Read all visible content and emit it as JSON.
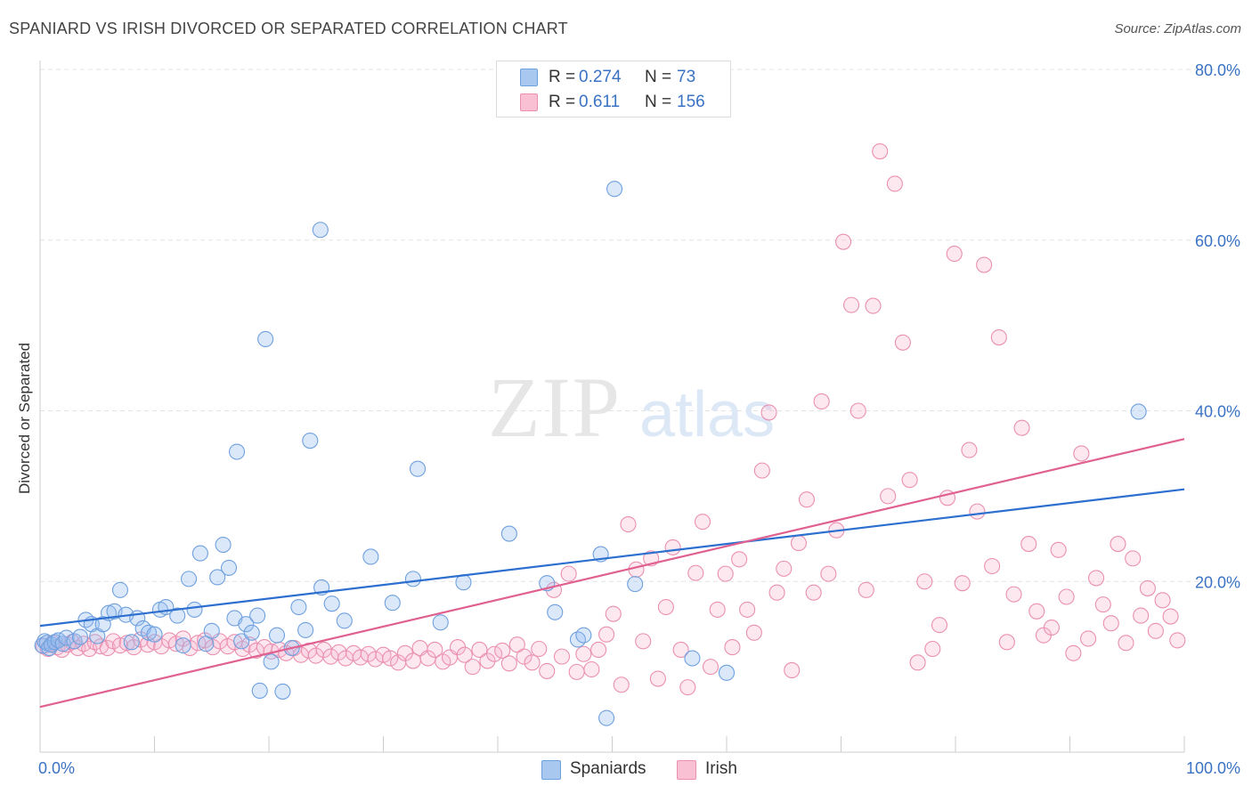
{
  "header": {
    "title": "SPANIARD VS IRISH DIVORCED OR SEPARATED CORRELATION CHART",
    "source": "Source: ZipAtlas.com"
  },
  "watermark": {
    "zip": "ZIP",
    "atlas": "atlas"
  },
  "legend_top": {
    "rows": [
      {
        "r_label": "R =",
        "r_value": "0.274",
        "n_label": "N =",
        "n_value": "73",
        "color": "#a9c8f0",
        "border": "#6fa0de"
      },
      {
        "r_label": "R =",
        "r_value": "0.611",
        "n_label": "N =",
        "n_value": "156",
        "color": "#f9bfd3",
        "border": "#ea8fb0"
      }
    ]
  },
  "legend_bottom": {
    "items": [
      {
        "label": "Spaniards",
        "color": "#a9c8f0",
        "border": "#6fa0de"
      },
      {
        "label": "Irish",
        "color": "#f9bfd3",
        "border": "#ea8fb0"
      }
    ]
  },
  "colors": {
    "spaniards_fill": "rgba(150,190,240,0.35)",
    "spaniards_stroke": "#6fa0de",
    "spaniards_line": "#2c6fcf",
    "irish_fill": "rgba(249,180,205,0.30)",
    "irish_stroke": "#ea8fb0",
    "irish_line": "#e0608f",
    "tick_label": "#3a72c4",
    "grid": "#e3e3e3"
  },
  "chart_data": {
    "type": "scatter",
    "title": "SPANIARD VS IRISH DIVORCED OR SEPARATED CORRELATION CHART",
    "xlabel": "",
    "ylabel": "Divorced or Separated",
    "xlim": [
      0,
      100
    ],
    "ylim": [
      0,
      80
    ],
    "x_tick_labels": [
      "0.0%",
      "100.0%"
    ],
    "y_ticks": [
      20,
      40,
      60,
      80
    ],
    "y_tick_labels": [
      "20.0%",
      "40.0%",
      "60.0%",
      "80.0%"
    ],
    "grid": true,
    "legend_position": "top-center",
    "series": [
      {
        "name": "Spaniards",
        "points": [
          [
            0.2,
            12.5
          ],
          [
            0.4,
            13.0
          ],
          [
            0.6,
            12.8
          ],
          [
            0.8,
            12.2
          ],
          [
            1.0,
            12.6
          ],
          [
            1.3,
            12.9
          ],
          [
            1.6,
            13.1
          ],
          [
            2.0,
            12.7
          ],
          [
            2.3,
            13.4
          ],
          [
            3.0,
            13.0
          ],
          [
            3.5,
            13.5
          ],
          [
            4.0,
            15.5
          ],
          [
            4.5,
            15.0
          ],
          [
            5.0,
            13.6
          ],
          [
            5.5,
            15.0
          ],
          [
            6.0,
            16.3
          ],
          [
            6.5,
            16.5
          ],
          [
            7.0,
            19.0
          ],
          [
            7.5,
            16.1
          ],
          [
            8.0,
            12.9
          ],
          [
            8.5,
            15.7
          ],
          [
            9.0,
            14.5
          ],
          [
            9.5,
            14.0
          ],
          [
            10.0,
            13.8
          ],
          [
            10.5,
            16.7
          ],
          [
            11.0,
            17.0
          ],
          [
            12.0,
            16.0
          ],
          [
            12.5,
            12.5
          ],
          [
            13.0,
            20.3
          ],
          [
            13.5,
            16.7
          ],
          [
            14.0,
            23.3
          ],
          [
            14.5,
            12.7
          ],
          [
            15.0,
            14.2
          ],
          [
            15.5,
            20.5
          ],
          [
            16.0,
            24.3
          ],
          [
            16.5,
            21.6
          ],
          [
            17.0,
            15.7
          ],
          [
            17.2,
            35.2
          ],
          [
            17.6,
            13.0
          ],
          [
            18.0,
            15.0
          ],
          [
            18.5,
            14.0
          ],
          [
            19.0,
            16.0
          ],
          [
            19.2,
            7.2
          ],
          [
            19.7,
            48.4
          ],
          [
            20.2,
            10.6
          ],
          [
            20.7,
            13.7
          ],
          [
            21.2,
            7.1
          ],
          [
            22.0,
            12.2
          ],
          [
            22.6,
            17.0
          ],
          [
            23.2,
            14.3
          ],
          [
            23.6,
            36.5
          ],
          [
            24.5,
            61.2
          ],
          [
            24.6,
            19.3
          ],
          [
            25.5,
            17.4
          ],
          [
            26.6,
            15.4
          ],
          [
            28.9,
            22.9
          ],
          [
            30.8,
            17.5
          ],
          [
            32.6,
            20.3
          ],
          [
            33.0,
            33.2
          ],
          [
            35.0,
            15.2
          ],
          [
            37.0,
            19.9
          ],
          [
            41.0,
            25.6
          ],
          [
            44.3,
            19.8
          ],
          [
            45.0,
            16.4
          ],
          [
            47.0,
            13.2
          ],
          [
            47.5,
            13.7
          ],
          [
            49.0,
            23.2
          ],
          [
            49.5,
            4.0
          ],
          [
            50.2,
            66.0
          ],
          [
            52.0,
            19.7
          ],
          [
            57.0,
            11.0
          ],
          [
            60.0,
            9.3
          ],
          [
            96.0,
            39.9
          ]
        ]
      },
      {
        "name": "Irish",
        "points": [
          [
            0.3,
            12.4
          ],
          [
            0.7,
            12.1
          ],
          [
            1.1,
            12.8
          ],
          [
            1.5,
            12.3
          ],
          [
            1.9,
            12.0
          ],
          [
            2.4,
            12.6
          ],
          [
            2.8,
            12.9
          ],
          [
            3.3,
            12.2
          ],
          [
            3.8,
            12.7
          ],
          [
            4.3,
            12.1
          ],
          [
            4.8,
            12.9
          ],
          [
            5.3,
            12.4
          ],
          [
            5.9,
            12.2
          ],
          [
            6.4,
            13.0
          ],
          [
            7.0,
            12.5
          ],
          [
            7.6,
            12.8
          ],
          [
            8.2,
            12.3
          ],
          [
            8.8,
            13.2
          ],
          [
            9.4,
            12.6
          ],
          [
            10.0,
            12.9
          ],
          [
            10.6,
            12.4
          ],
          [
            11.3,
            13.1
          ],
          [
            11.9,
            12.7
          ],
          [
            12.5,
            13.3
          ],
          [
            13.1,
            12.2
          ],
          [
            13.8,
            12.8
          ],
          [
            14.4,
            13.1
          ],
          [
            15.1,
            12.3
          ],
          [
            15.7,
            13.0
          ],
          [
            16.4,
            12.4
          ],
          [
            17.0,
            12.9
          ],
          [
            17.7,
            12.1
          ],
          [
            18.3,
            12.6
          ],
          [
            18.9,
            11.9
          ],
          [
            19.6,
            12.3
          ],
          [
            20.2,
            11.8
          ],
          [
            20.9,
            12.0
          ],
          [
            21.5,
            11.6
          ],
          [
            22.2,
            12.2
          ],
          [
            22.8,
            11.4
          ],
          [
            23.5,
            11.9
          ],
          [
            24.1,
            11.3
          ],
          [
            24.8,
            12.0
          ],
          [
            25.4,
            11.2
          ],
          [
            26.1,
            11.7
          ],
          [
            26.7,
            11.0
          ],
          [
            27.4,
            11.6
          ],
          [
            28.0,
            11.1
          ],
          [
            28.7,
            11.5
          ],
          [
            29.3,
            10.9
          ],
          [
            30.0,
            11.4
          ],
          [
            30.6,
            11.0
          ],
          [
            31.3,
            10.5
          ],
          [
            31.9,
            11.6
          ],
          [
            32.6,
            10.7
          ],
          [
            33.2,
            12.2
          ],
          [
            33.9,
            11.0
          ],
          [
            34.5,
            12.0
          ],
          [
            35.2,
            10.6
          ],
          [
            35.8,
            11.1
          ],
          [
            36.5,
            12.3
          ],
          [
            37.1,
            11.4
          ],
          [
            37.8,
            10.0
          ],
          [
            38.4,
            12.0
          ],
          [
            39.1,
            10.7
          ],
          [
            39.7,
            11.5
          ],
          [
            40.4,
            11.9
          ],
          [
            41.0,
            10.4
          ],
          [
            41.7,
            12.6
          ],
          [
            42.3,
            11.2
          ],
          [
            43.0,
            10.5
          ],
          [
            43.6,
            12.1
          ],
          [
            44.3,
            9.5
          ],
          [
            44.9,
            19.0
          ],
          [
            45.6,
            11.2
          ],
          [
            46.2,
            20.9
          ],
          [
            46.9,
            9.4
          ],
          [
            47.5,
            11.5
          ],
          [
            48.2,
            9.7
          ],
          [
            48.8,
            12.0
          ],
          [
            49.5,
            13.8
          ],
          [
            50.1,
            16.2
          ],
          [
            50.8,
            7.9
          ],
          [
            51.4,
            26.7
          ],
          [
            52.1,
            21.4
          ],
          [
            52.7,
            13.0
          ],
          [
            53.4,
            22.7
          ],
          [
            54.0,
            8.6
          ],
          [
            54.7,
            17.0
          ],
          [
            55.3,
            24.0
          ],
          [
            56.0,
            12.0
          ],
          [
            56.6,
            7.6
          ],
          [
            57.3,
            21.0
          ],
          [
            57.9,
            27.0
          ],
          [
            58.6,
            10.0
          ],
          [
            59.2,
            16.7
          ],
          [
            59.9,
            20.9
          ],
          [
            60.5,
            12.3
          ],
          [
            61.1,
            22.6
          ],
          [
            61.8,
            16.7
          ],
          [
            62.4,
            14.0
          ],
          [
            63.1,
            33.0
          ],
          [
            63.7,
            39.8
          ],
          [
            64.4,
            18.7
          ],
          [
            65.0,
            21.5
          ],
          [
            65.7,
            9.6
          ],
          [
            66.3,
            24.5
          ],
          [
            67.0,
            29.6
          ],
          [
            67.6,
            18.7
          ],
          [
            68.3,
            41.1
          ],
          [
            68.9,
            20.9
          ],
          [
            69.6,
            26.0
          ],
          [
            70.2,
            59.8
          ],
          [
            70.9,
            52.4
          ],
          [
            71.5,
            40.0
          ],
          [
            72.2,
            19.0
          ],
          [
            72.8,
            52.3
          ],
          [
            73.4,
            70.4
          ],
          [
            74.1,
            30.0
          ],
          [
            74.7,
            66.6
          ],
          [
            75.4,
            48.0
          ],
          [
            76.0,
            31.9
          ],
          [
            76.7,
            10.5
          ],
          [
            77.3,
            20.0
          ],
          [
            78.0,
            12.1
          ],
          [
            78.6,
            14.9
          ],
          [
            79.3,
            29.8
          ],
          [
            79.9,
            58.4
          ],
          [
            80.6,
            19.8
          ],
          [
            81.2,
            35.4
          ],
          [
            81.9,
            28.2
          ],
          [
            82.5,
            57.1
          ],
          [
            83.2,
            21.8
          ],
          [
            83.8,
            48.6
          ],
          [
            84.5,
            12.9
          ],
          [
            85.1,
            18.5
          ],
          [
            85.8,
            38.0
          ],
          [
            86.4,
            24.4
          ],
          [
            87.1,
            16.5
          ],
          [
            87.7,
            13.7
          ],
          [
            88.4,
            14.6
          ],
          [
            89.0,
            23.7
          ],
          [
            89.7,
            18.2
          ],
          [
            90.3,
            11.6
          ],
          [
            91.0,
            35.0
          ],
          [
            91.6,
            13.3
          ],
          [
            92.3,
            20.4
          ],
          [
            92.9,
            17.3
          ],
          [
            93.6,
            15.1
          ],
          [
            94.2,
            24.4
          ],
          [
            94.9,
            12.8
          ],
          [
            95.5,
            22.7
          ],
          [
            96.2,
            16.0
          ],
          [
            96.8,
            19.2
          ],
          [
            97.5,
            14.2
          ],
          [
            98.1,
            17.8
          ],
          [
            98.8,
            15.9
          ],
          [
            99.4,
            13.1
          ]
        ]
      }
    ],
    "trendlines": [
      {
        "series": "Spaniards",
        "x": [
          0,
          100
        ],
        "y": [
          14.8,
          30.8
        ]
      },
      {
        "series": "Irish",
        "x": [
          0,
          100
        ],
        "y": [
          5.3,
          36.7
        ]
      }
    ]
  }
}
